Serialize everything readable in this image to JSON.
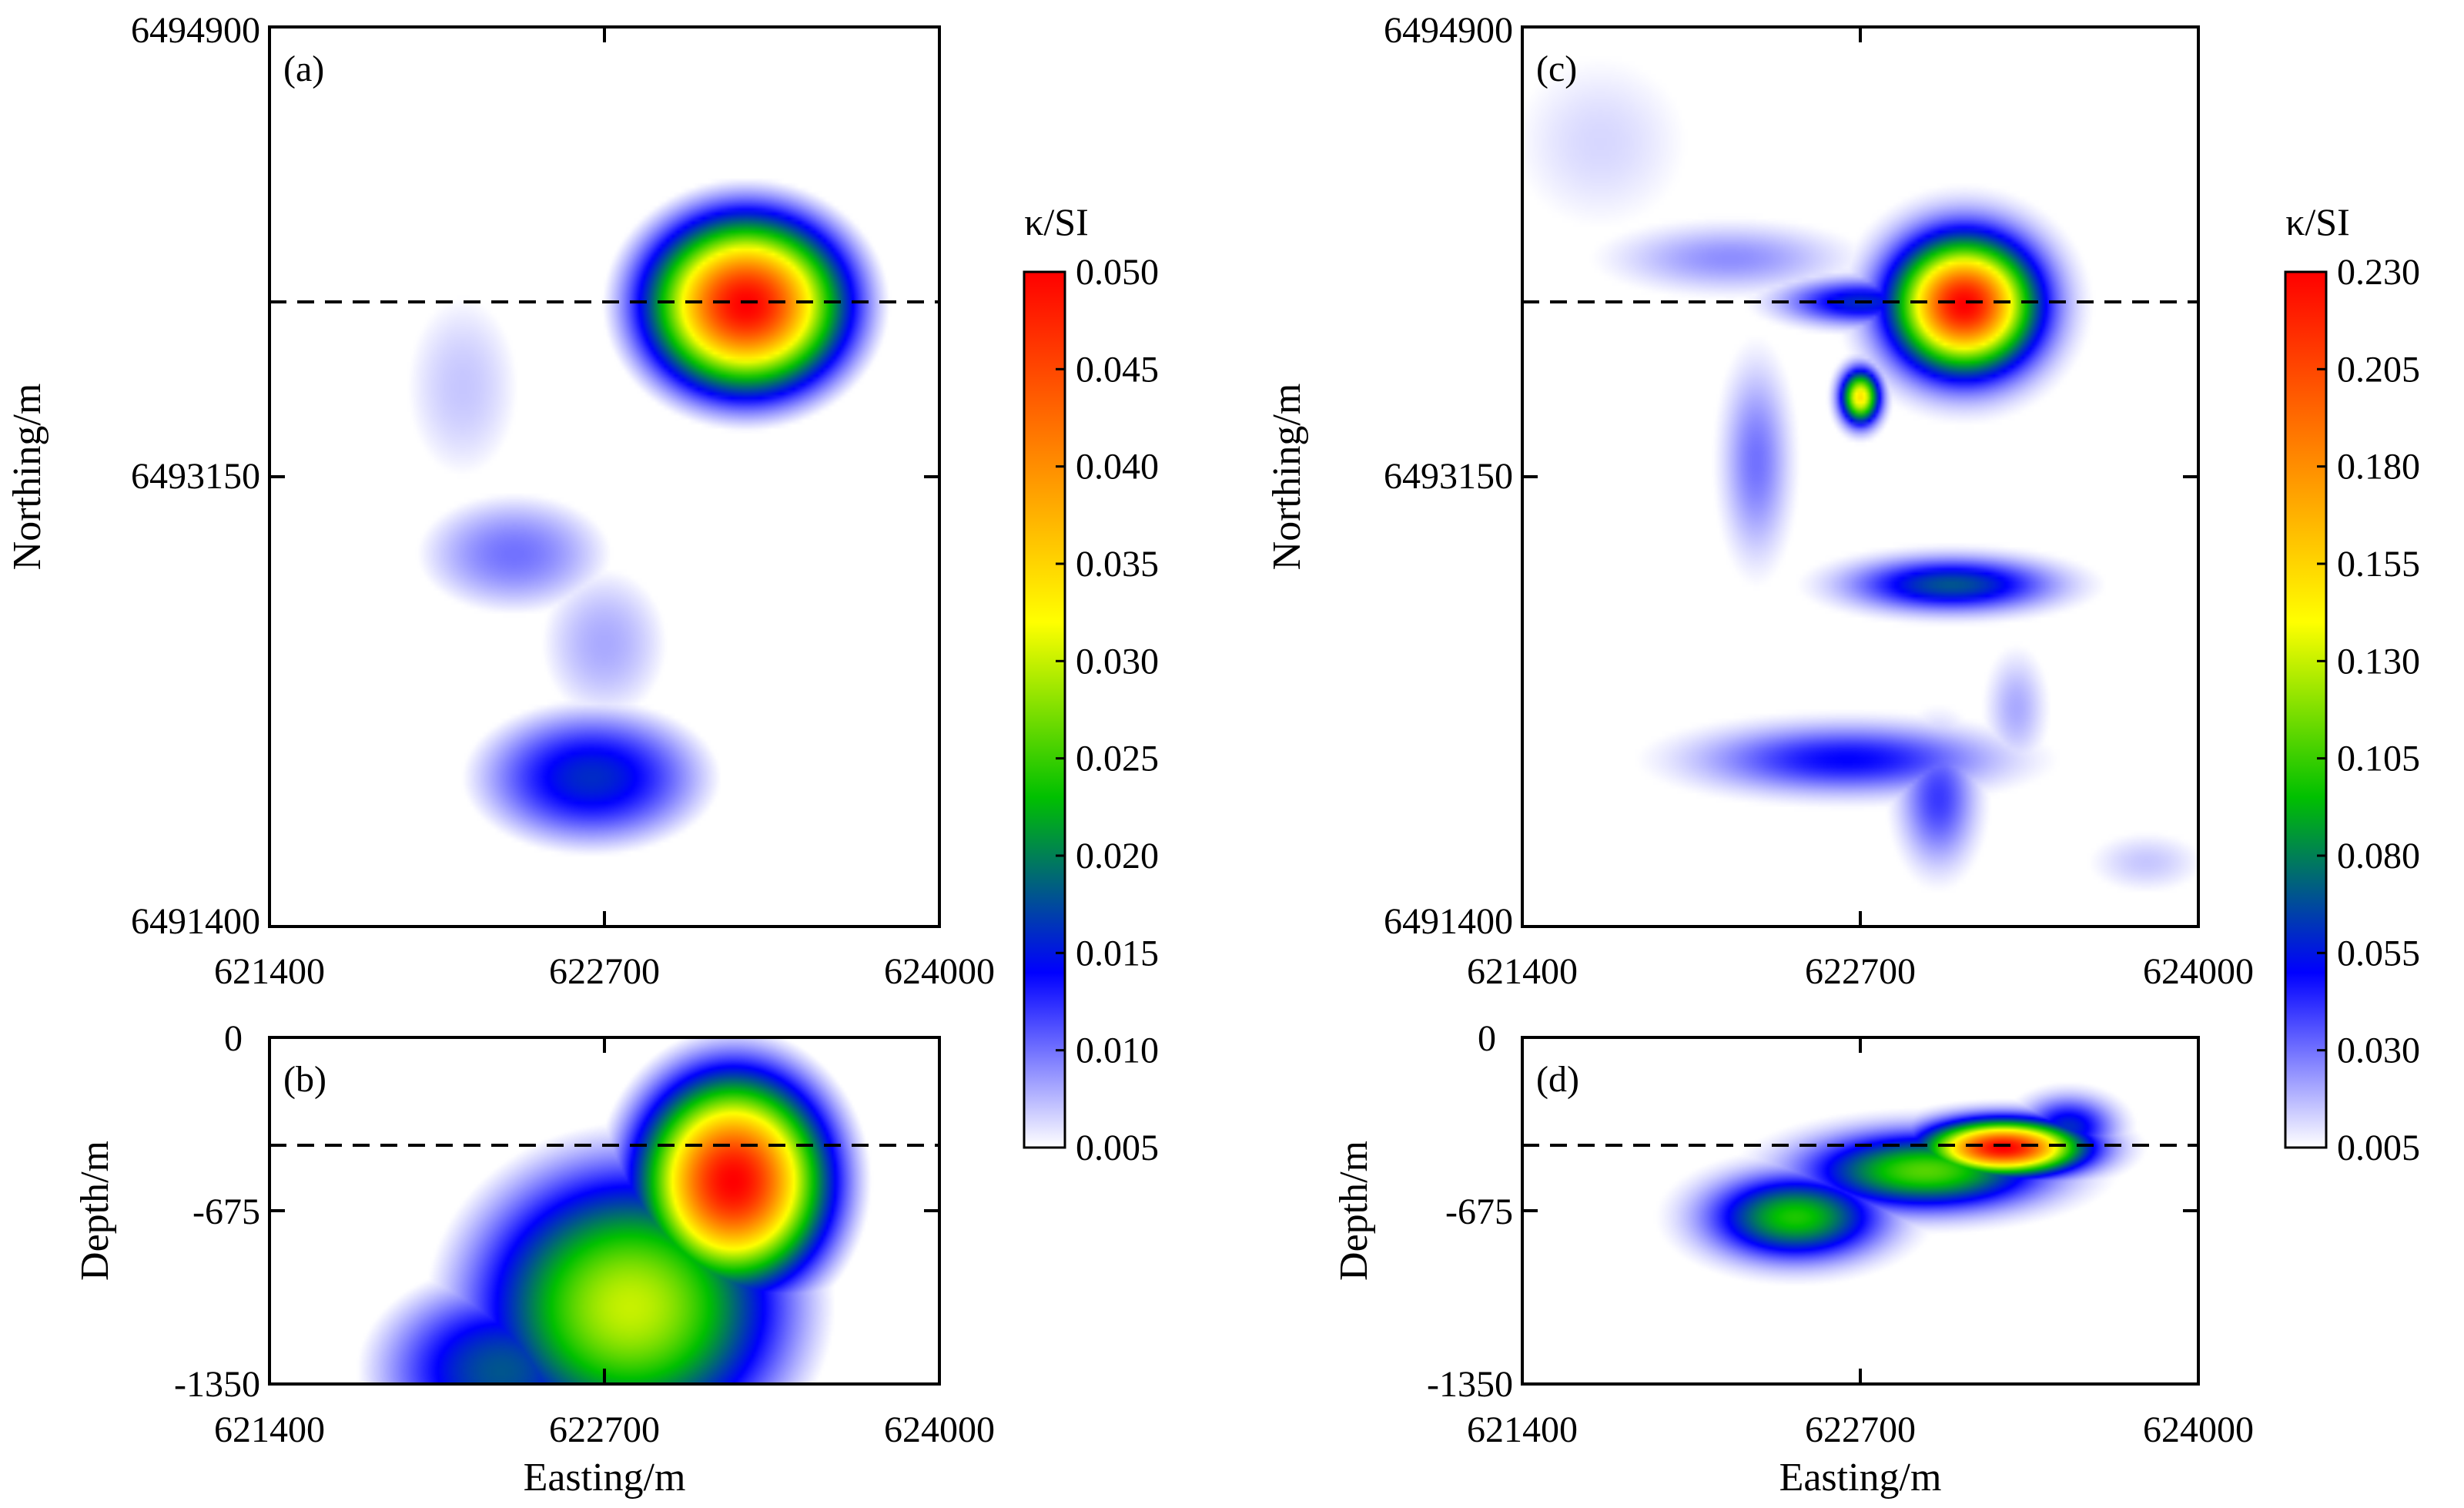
{
  "chart_data": [
    {
      "type": "heatmap",
      "panel": "(a)",
      "xlabel": "",
      "ylabel": "Northing/m",
      "xlim": [
        621400,
        624000
      ],
      "ylim": [
        6491400,
        6494900
      ],
      "x_ticks": [
        "621400",
        "622700",
        "624000"
      ],
      "y_ticks": [
        "6494900",
        "6493150",
        "6491400"
      ],
      "reference_line_northing": 6493820,
      "blobs": [
        {
          "x": 623250,
          "y": 6493820,
          "sx": 260,
          "sy": 230,
          "amp": 0.05
        },
        {
          "x": 622150,
          "y": 6493500,
          "sx": 260,
          "sy": 420,
          "amp": 0.007
        },
        {
          "x": 622350,
          "y": 6492850,
          "sx": 320,
          "sy": 200,
          "amp": 0.01
        },
        {
          "x": 622700,
          "y": 6492500,
          "sx": 250,
          "sy": 300,
          "amp": 0.008
        },
        {
          "x": 622650,
          "y": 6491980,
          "sx": 330,
          "sy": 200,
          "amp": 0.016
        }
      ]
    },
    {
      "type": "heatmap",
      "panel": "(b)",
      "xlabel": "Easting/m",
      "ylabel": "Depth/m",
      "xlim": [
        621400,
        624000
      ],
      "ylim": [
        -1350,
        0
      ],
      "x_ticks": [
        "621400",
        "622700",
        "624000"
      ],
      "y_ticks": [
        "0",
        "-675",
        "-1350"
      ],
      "reference_line_depth": -420,
      "blobs": [
        {
          "x": 623200,
          "y": -560,
          "sx": 250,
          "sy": 280,
          "amp": 0.05
        },
        {
          "x": 622800,
          "y": -1050,
          "sx": 420,
          "sy": 380,
          "amp": 0.03
        },
        {
          "x": 622300,
          "y": -1300,
          "sx": 350,
          "sy": 260,
          "amp": 0.018
        }
      ]
    },
    {
      "type": "heatmap",
      "panel": "(c)",
      "xlabel": "",
      "ylabel": "Northing/m",
      "xlim": [
        621400,
        624000
      ],
      "ylim": [
        6491400,
        6494900
      ],
      "x_ticks": [
        "621400",
        "622700",
        "624000"
      ],
      "y_ticks": [
        "6494900",
        "6493150",
        "6491400"
      ],
      "reference_line_northing": 6493820,
      "blobs": [
        {
          "x": 623100,
          "y": 6493820,
          "sx": 180,
          "sy": 170,
          "amp": 0.23
        },
        {
          "x": 622700,
          "y": 6493460,
          "sx": 50,
          "sy": 70,
          "amp": 0.15
        },
        {
          "x": 622700,
          "y": 6493830,
          "sx": 200,
          "sy": 60,
          "amp": 0.06
        },
        {
          "x": 622300,
          "y": 6493210,
          "sx": 90,
          "sy": 260,
          "amp": 0.03
        },
        {
          "x": 623050,
          "y": 6492730,
          "sx": 260,
          "sy": 70,
          "amp": 0.07
        },
        {
          "x": 622650,
          "y": 6492050,
          "sx": 380,
          "sy": 90,
          "amp": 0.05
        },
        {
          "x": 623000,
          "y": 6491900,
          "sx": 100,
          "sy": 180,
          "amp": 0.04
        },
        {
          "x": 622200,
          "y": 6494000,
          "sx": 300,
          "sy": 90,
          "amp": 0.025
        },
        {
          "x": 621700,
          "y": 6494450,
          "sx": 250,
          "sy": 250,
          "amp": 0.012
        },
        {
          "x": 623300,
          "y": 6492250,
          "sx": 80,
          "sy": 150,
          "amp": 0.02
        },
        {
          "x": 623800,
          "y": 6491650,
          "sx": 150,
          "sy": 80,
          "amp": 0.015
        }
      ]
    },
    {
      "type": "heatmap",
      "panel": "(d)",
      "xlabel": "Easting/m",
      "ylabel": "Depth/m",
      "xlim": [
        621400,
        624000
      ],
      "ylim": [
        -1350,
        0
      ],
      "x_ticks": [
        "621400",
        "622700",
        "624000"
      ],
      "y_ticks": [
        "0",
        "-675",
        "-1350"
      ],
      "reference_line_depth": -420,
      "blobs": [
        {
          "x": 623250,
          "y": -430,
          "sx": 200,
          "sy": 70,
          "amp": 0.23
        },
        {
          "x": 622950,
          "y": -520,
          "sx": 300,
          "sy": 100,
          "amp": 0.11
        },
        {
          "x": 622450,
          "y": -700,
          "sx": 220,
          "sy": 110,
          "amp": 0.1
        },
        {
          "x": 623500,
          "y": -350,
          "sx": 120,
          "sy": 80,
          "amp": 0.06
        }
      ]
    }
  ],
  "colorbars": [
    {
      "title": "κ/SI",
      "min": 0.005,
      "max": 0.05,
      "ticks": [
        "0.050",
        "0.045",
        "0.040",
        "0.035",
        "0.030",
        "0.025",
        "0.020",
        "0.015",
        "0.010",
        "0.005"
      ]
    },
    {
      "title": "κ/SI",
      "min": 0.005,
      "max": 0.23,
      "ticks": [
        "0.230",
        "0.205",
        "0.180",
        "0.155",
        "0.130",
        "0.105",
        "0.080",
        "0.055",
        "0.030",
        "0.005"
      ]
    }
  ],
  "colormap": [
    "#ffffff",
    "#0000ff",
    "#00c000",
    "#ffff00",
    "#ff8000",
    "#ff0000"
  ]
}
